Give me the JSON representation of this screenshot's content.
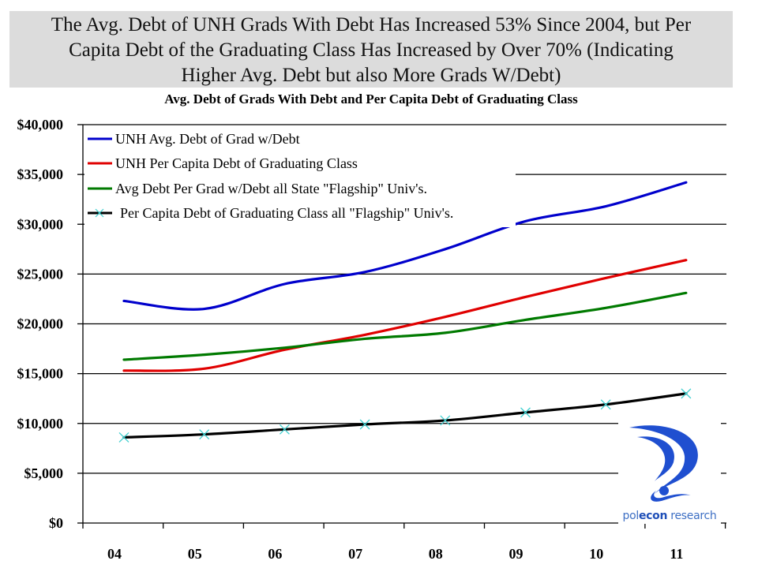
{
  "headline": {
    "line1": "The Avg. Debt of UNH Grads With Debt Has Increased 53% Since 2004, but Per",
    "line2": "Capita Debt of the Graduating Class Has Increased by Over 70% (Indicating",
    "line3": "Higher Avg. Debt but also More Grads W/Debt)"
  },
  "logo": {
    "text_part1": "pol",
    "text_part2": "econ",
    "text_part3": " research",
    "color": "#1f4fd0"
  },
  "chart_data": {
    "type": "line",
    "title": "Avg. Debt of Grads With Debt and Per Capita Debt of Graduating Class",
    "xlabel": "",
    "ylabel": "",
    "categories": [
      "04",
      "05",
      "06",
      "07",
      "08",
      "09",
      "10",
      "11"
    ],
    "ylim": [
      0,
      40000
    ],
    "yticks": [
      0,
      5000,
      10000,
      15000,
      20000,
      25000,
      30000,
      35000,
      40000
    ],
    "ytick_labels": [
      "$0",
      "$5,000",
      "$10,000",
      "$15,000",
      "$20,000",
      "$25,000",
      "$30,000",
      "$35,000",
      "$40,000"
    ],
    "grid": "horizontal",
    "legend_position": "top-left",
    "series": [
      {
        "name": "UNH Avg. Debt of Grad w/Debt",
        "color": "#0000cc",
        "marker": "none",
        "values": [
          22300,
          21500,
          24000,
          25200,
          27500,
          30300,
          31800,
          34200
        ]
      },
      {
        "name": "UNH Per Capita Debt of  Graduating Class",
        "color": "#e00000",
        "marker": "none",
        "values": [
          15300,
          15500,
          17400,
          18900,
          20700,
          22700,
          24600,
          26400
        ]
      },
      {
        "name": "Avg Debt Per Grad w/Debt all State \"Flagship\" Univ's.",
        "color": "#007a00",
        "marker": "none",
        "values": [
          16400,
          16900,
          17600,
          18500,
          19100,
          20400,
          21600,
          23100
        ]
      },
      {
        "name": "Per Capita Debt of Graduating Class all \"Flagship\" Univ's.",
        "color": "#000000",
        "marker": "x",
        "marker_color": "#40d0d0",
        "values": [
          8600,
          8900,
          9400,
          9900,
          10300,
          11100,
          11900,
          13000
        ]
      }
    ]
  }
}
